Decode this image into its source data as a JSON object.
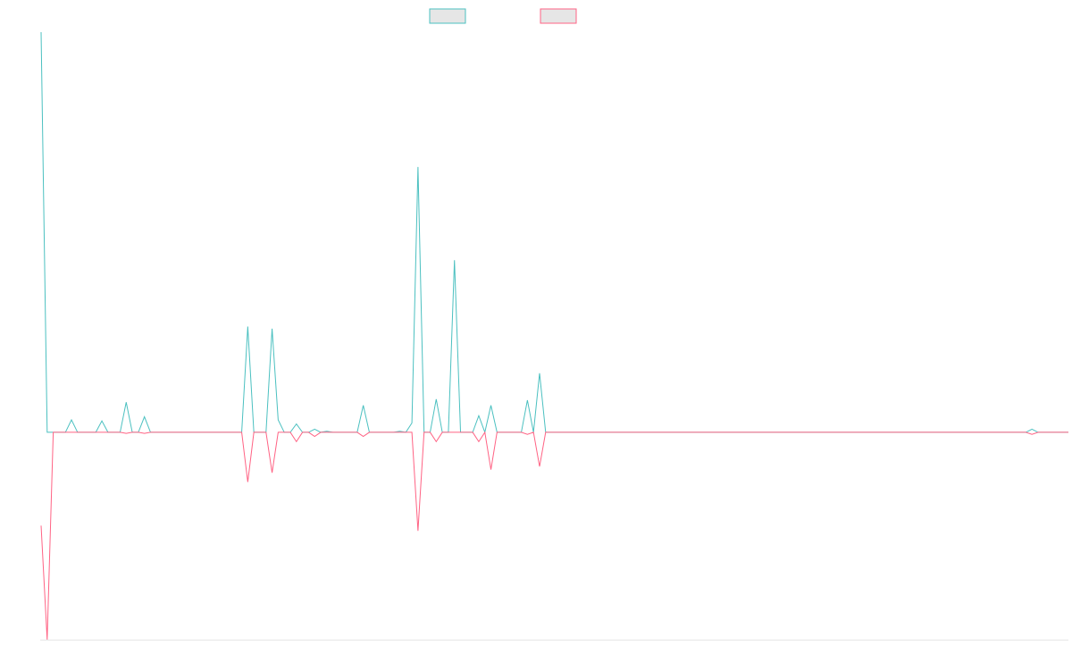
{
  "chart_data": {
    "type": "line",
    "title": "",
    "xlabel": "",
    "ylabel": "",
    "x_count": 170,
    "xlim": [
      0,
      169
    ],
    "ylim": [
      -100,
      193
    ],
    "grid": false,
    "legend": "top-center",
    "colors": {
      "series_a": "#4bc0c0",
      "series_a_fill": "#e6e6e6",
      "series_b": "#ff6384",
      "series_b_fill": "#e6e6e6",
      "axis": "#e6e6e6"
    },
    "series": [
      {
        "name": "",
        "color_key": "series_a",
        "spikes": {
          "0": 193,
          "1": 0,
          "5": 6,
          "10": 5.5,
          "14": 14.5,
          "17": 7.5,
          "34": 51,
          "38": 50,
          "39": 6,
          "42": 4,
          "45": 1.5,
          "47": 0.5,
          "53": 13,
          "59": 0.5,
          "61": 4.5,
          "62": 128,
          "65": 16,
          "68": 83,
          "72": 8,
          "74": 13,
          "80": 15.5,
          "82": 28.5,
          "163": 1.5
        }
      },
      {
        "name": "",
        "color_key": "series_b",
        "spikes": {
          "0": -45,
          "1": -100,
          "14": -0.5,
          "17": -0.5,
          "34": -24,
          "38": -19.5,
          "42": -4.5,
          "45": -2,
          "53": -2,
          "62": -47.5,
          "65": -4.5,
          "72": -4.5,
          "74": -18,
          "80": -1,
          "82": -16.5,
          "163": -1
        }
      }
    ]
  },
  "legend": {
    "items": [
      {
        "label": "",
        "color_key": "series_a"
      },
      {
        "label": "",
        "color_key": "series_b"
      }
    ]
  }
}
